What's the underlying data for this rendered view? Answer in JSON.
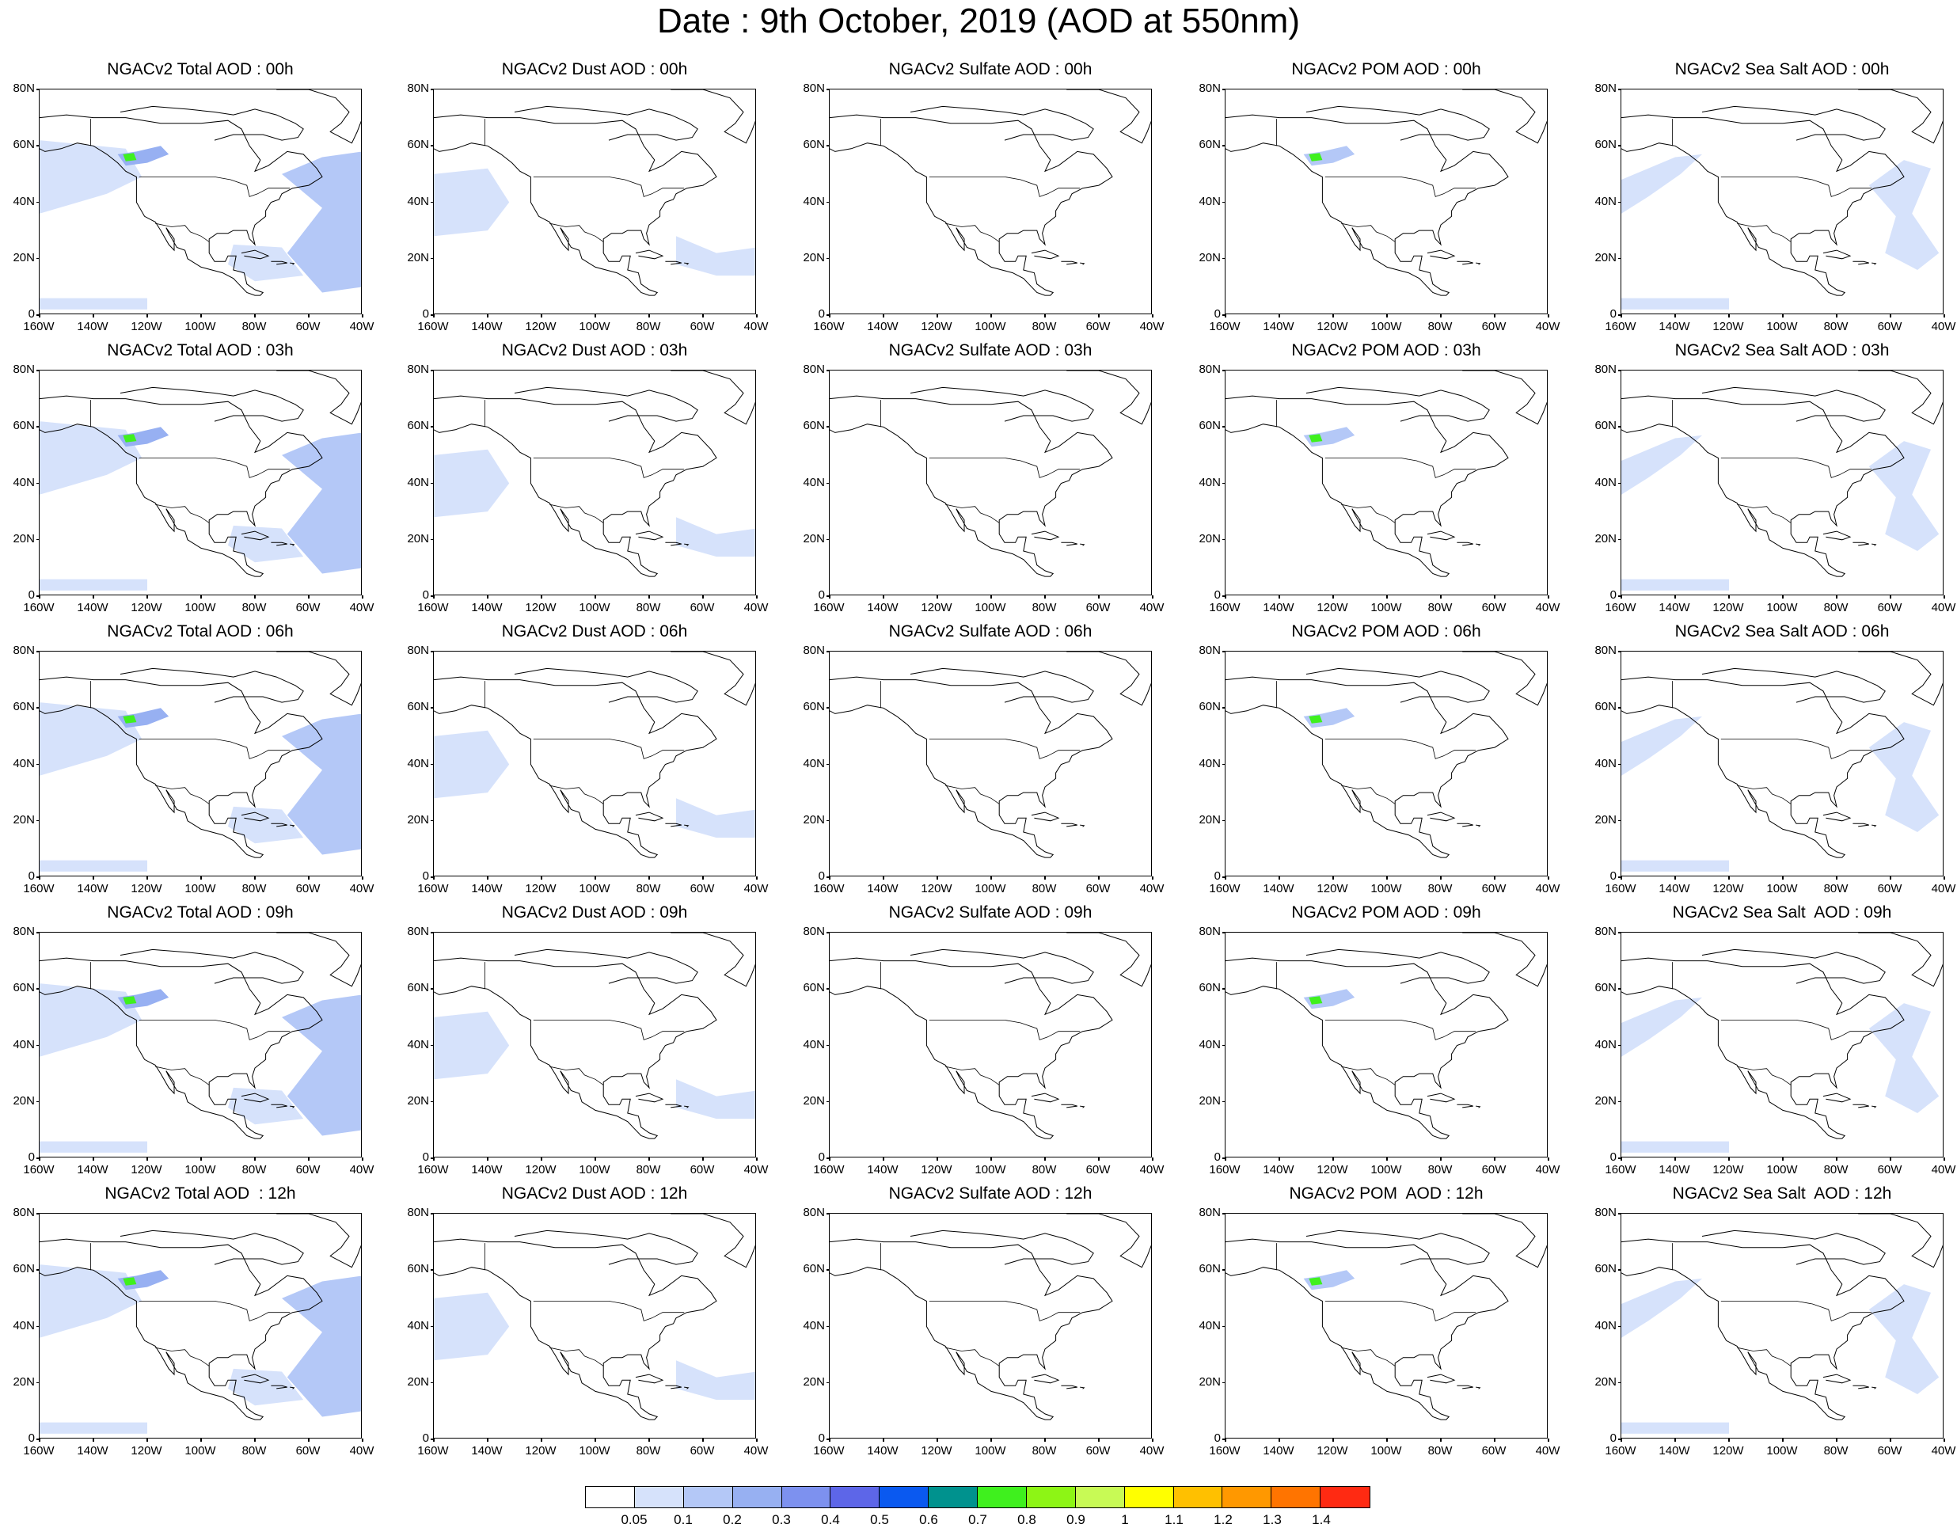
{
  "title": "Date : 9th October, 2019 (AOD at 550nm)",
  "grid": {
    "rows": [
      "00h",
      "03h",
      "06h",
      "09h",
      "12h"
    ],
    "columns": [
      "Total",
      "Dust",
      "Sulfate",
      "POM",
      "Sea Salt"
    ]
  },
  "panel_titles": [
    [
      "NGACv2 Total AOD : 00h",
      "NGACv2 Dust AOD : 00h",
      "NGACv2 Sulfate AOD : 00h",
      "NGACv2 POM AOD : 00h",
      "NGACv2 Sea Salt AOD : 00h"
    ],
    [
      "NGACv2 Total AOD : 03h",
      "NGACv2 Dust AOD : 03h",
      "NGACv2 Sulfate AOD : 03h",
      "NGACv2 POM AOD : 03h",
      "NGACv2 Sea Salt AOD : 03h"
    ],
    [
      "NGACv2 Total AOD : 06h",
      "NGACv2 Dust AOD : 06h",
      "NGACv2 Sulfate AOD : 06h",
      "NGACv2 POM AOD : 06h",
      "NGACv2 Sea Salt AOD : 06h"
    ],
    [
      "NGACv2 Total AOD : 09h",
      "NGACv2 Dust AOD : 09h",
      "NGACv2 Sulfate AOD : 09h",
      "NGACv2 POM AOD : 09h",
      "NGACv2 Sea Salt  AOD : 09h"
    ],
    [
      "NGACv2 Total AOD  : 12h",
      "NGACv2 Dust AOD : 12h",
      "NGACv2 Sulfate AOD : 12h",
      "NGACv2 POM  AOD : 12h",
      "NGACv2 Sea Salt  AOD : 12h"
    ]
  ],
  "axes": {
    "lon_range": [
      -160,
      -40
    ],
    "lat_range": [
      0,
      80
    ],
    "lat_ticks": [
      80,
      60,
      40,
      20,
      0
    ],
    "lat_tick_labels": [
      "80N",
      "60N",
      "40N",
      "20N",
      "0"
    ],
    "lon_ticks": [
      -160,
      -140,
      -120,
      -100,
      -80,
      -60,
      -40
    ],
    "lon_tick_labels": [
      "160W",
      "140W",
      "120W",
      "100W",
      "80W",
      "60W",
      "40W"
    ]
  },
  "colorbar": {
    "levels": [
      0.05,
      0.1,
      0.2,
      0.3,
      0.4,
      0.5,
      0.6,
      0.7,
      0.8,
      0.9,
      1,
      1.1,
      1.2,
      1.3,
      1.4
    ],
    "labels": [
      "0.05",
      "0.1",
      "0.2",
      "0.3",
      "0.4",
      "0.5",
      "0.6",
      "0.7",
      "0.8",
      "0.9",
      "1",
      "1.1",
      "1.2",
      "1.3",
      "1.4"
    ],
    "colors": [
      "#ffffff",
      "#d6e2fb",
      "#b4c8f7",
      "#97b0f2",
      "#7d91ef",
      "#5d66e8",
      "#0a59f0",
      "#00928e",
      "#3ff01e",
      "#8df515",
      "#c8fa55",
      "#ffff00",
      "#ffc000",
      "#ff9800",
      "#ff7400",
      "#ff2a12"
    ]
  },
  "features": {
    "pacific_band": [
      [
        -160,
        62
      ],
      [
        -128,
        59
      ],
      [
        -122,
        49
      ],
      [
        -135,
        43
      ],
      [
        -160,
        36
      ]
    ],
    "tropical_pacific_band": [
      [
        -160,
        6
      ],
      [
        -120,
        6
      ],
      [
        -120,
        2
      ],
      [
        -160,
        2
      ]
    ],
    "atlantic_arc": [
      [
        -70,
        50
      ],
      [
        -55,
        56
      ],
      [
        -40,
        58
      ],
      [
        -40,
        10
      ],
      [
        -55,
        8
      ],
      [
        -68,
        22
      ],
      [
        -55,
        38
      ]
    ],
    "caribbean": [
      [
        -88,
        25
      ],
      [
        -70,
        24
      ],
      [
        -62,
        14
      ],
      [
        -80,
        12
      ],
      [
        -90,
        18
      ]
    ],
    "dust_pacific": [
      [
        -160,
        50
      ],
      [
        -140,
        52
      ],
      [
        -132,
        40
      ],
      [
        -140,
        30
      ],
      [
        -160,
        28
      ]
    ],
    "dust_atlantic": [
      [
        -70,
        28
      ],
      [
        -55,
        22
      ],
      [
        -40,
        24
      ],
      [
        -40,
        14
      ],
      [
        -55,
        14
      ],
      [
        -70,
        18
      ]
    ],
    "fire_plume": [
      [
        -131,
        57
      ],
      [
        -124,
        58
      ],
      [
        -115,
        60
      ],
      [
        -112,
        57
      ],
      [
        -120,
        54
      ],
      [
        -128,
        53
      ]
    ],
    "fire_core": [
      [
        -129,
        57
      ],
      [
        -125,
        57.5
      ],
      [
        -124,
        55
      ],
      [
        -128,
        54.5
      ]
    ],
    "sea_salt_pacific_arc": [
      [
        -160,
        48
      ],
      [
        -140,
        56
      ],
      [
        -130,
        57
      ],
      [
        -138,
        50
      ],
      [
        -150,
        42
      ],
      [
        -160,
        36
      ]
    ],
    "sea_salt_atlantic_arc": [
      [
        -68,
        46
      ],
      [
        -55,
        55
      ],
      [
        -45,
        52
      ],
      [
        -52,
        36
      ],
      [
        -42,
        22
      ],
      [
        -50,
        16
      ],
      [
        -62,
        22
      ],
      [
        -58,
        35
      ]
    ]
  }
}
